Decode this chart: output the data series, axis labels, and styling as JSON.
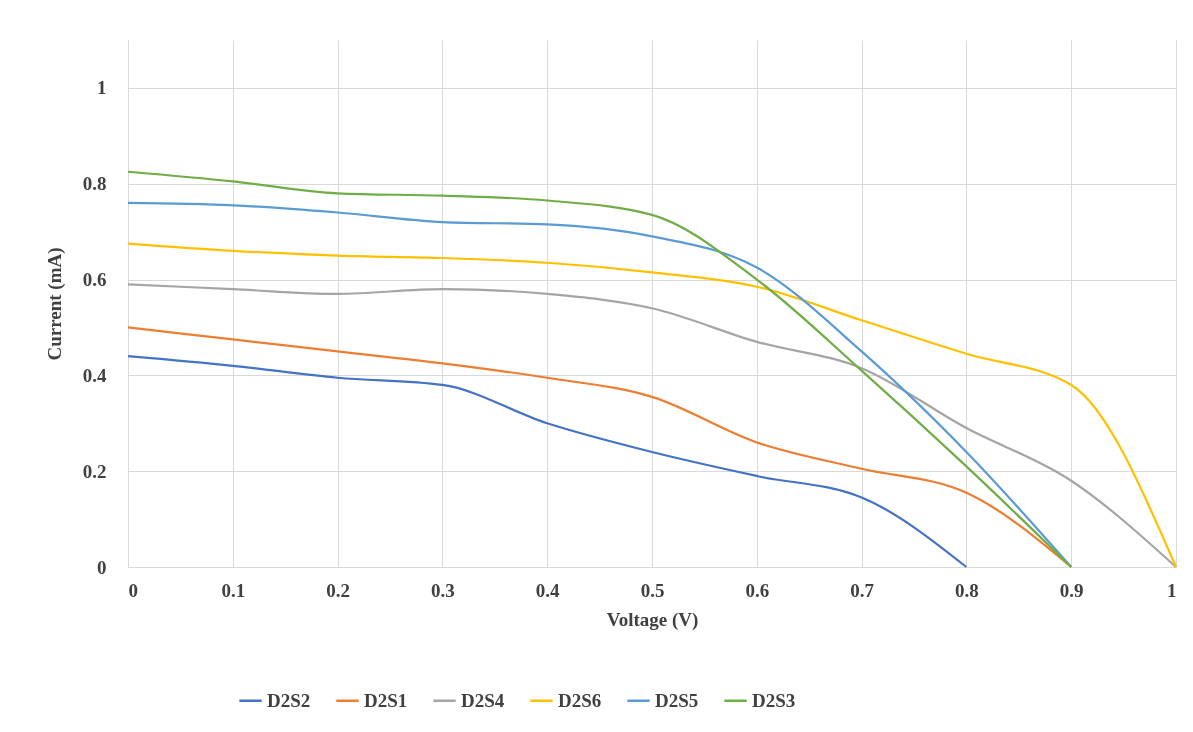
{
  "chart_data": {
    "type": "line",
    "xlabel": "Voltage (V)",
    "ylabel": "Current (mA)",
    "xlim": [
      0,
      1
    ],
    "xticks": [
      0,
      0.1,
      0.2,
      0.3,
      0.4,
      0.5,
      0.6,
      0.7,
      0.8,
      0.9,
      1
    ],
    "ylim": [
      0,
      1.1
    ],
    "yticks": [
      0,
      0.2,
      0.4,
      0.6,
      0.8,
      1
    ],
    "grid": true,
    "legend": "bottom",
    "marker": "none",
    "line_style": "solid",
    "series": [
      {
        "name": "D2S2",
        "color": "#4472c4",
        "x": [
          0,
          0.1,
          0.2,
          0.3,
          0.4,
          0.5,
          0.6,
          0.7,
          0.8
        ],
        "values": [
          0.44,
          0.42,
          0.395,
          0.38,
          0.3,
          0.24,
          0.19,
          0.145,
          0
        ]
      },
      {
        "name": "D2S1",
        "color": "#ed7d31",
        "x": [
          0,
          0.1,
          0.2,
          0.3,
          0.4,
          0.5,
          0.6,
          0.7,
          0.8,
          0.9
        ],
        "values": [
          0.5,
          0.475,
          0.45,
          0.425,
          0.395,
          0.355,
          0.26,
          0.205,
          0.155,
          0
        ]
      },
      {
        "name": "D2S4",
        "color": "#a5a5a5",
        "x": [
          0,
          0.1,
          0.2,
          0.3,
          0.4,
          0.5,
          0.6,
          0.7,
          0.8,
          0.9,
          1
        ],
        "values": [
          0.59,
          0.58,
          0.57,
          0.58,
          0.57,
          0.54,
          0.47,
          0.415,
          0.29,
          0.18,
          0
        ]
      },
      {
        "name": "D2S6",
        "color": "#ffc000",
        "x": [
          0,
          0.1,
          0.2,
          0.3,
          0.4,
          0.5,
          0.6,
          0.7,
          0.8,
          0.9,
          1
        ],
        "values": [
          0.675,
          0.66,
          0.65,
          0.645,
          0.635,
          0.615,
          0.585,
          0.515,
          0.445,
          0.38,
          0
        ]
      },
      {
        "name": "D2S5",
        "color": "#5b9bd5",
        "x": [
          0,
          0.1,
          0.2,
          0.3,
          0.4,
          0.5,
          0.6,
          0.7,
          0.8,
          0.9
        ],
        "values": [
          0.76,
          0.755,
          0.74,
          0.72,
          0.715,
          0.69,
          0.625,
          0.45,
          0.24,
          0
        ]
      },
      {
        "name": "D2S3",
        "color": "#70ad47",
        "x": [
          0,
          0.1,
          0.2,
          0.3,
          0.4,
          0.5,
          0.6,
          0.7,
          0.8,
          0.9
        ],
        "values": [
          0.825,
          0.805,
          0.78,
          0.775,
          0.765,
          0.735,
          0.6,
          0.41,
          0.21,
          0
        ]
      }
    ]
  }
}
